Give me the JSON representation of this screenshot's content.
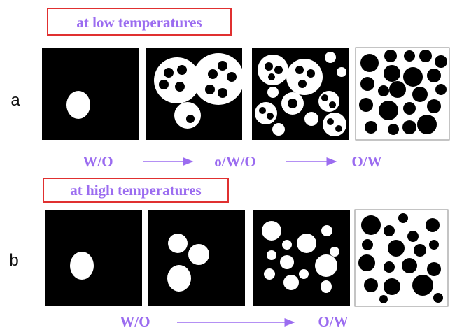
{
  "row_a": {
    "title": "at low temperatures",
    "label": "a",
    "stages": [
      "W/O",
      "o/W/O",
      "O/W"
    ]
  },
  "row_b": {
    "title": "at high temperatures",
    "label": "b",
    "stages": [
      "W/O",
      "O/W"
    ]
  }
}
